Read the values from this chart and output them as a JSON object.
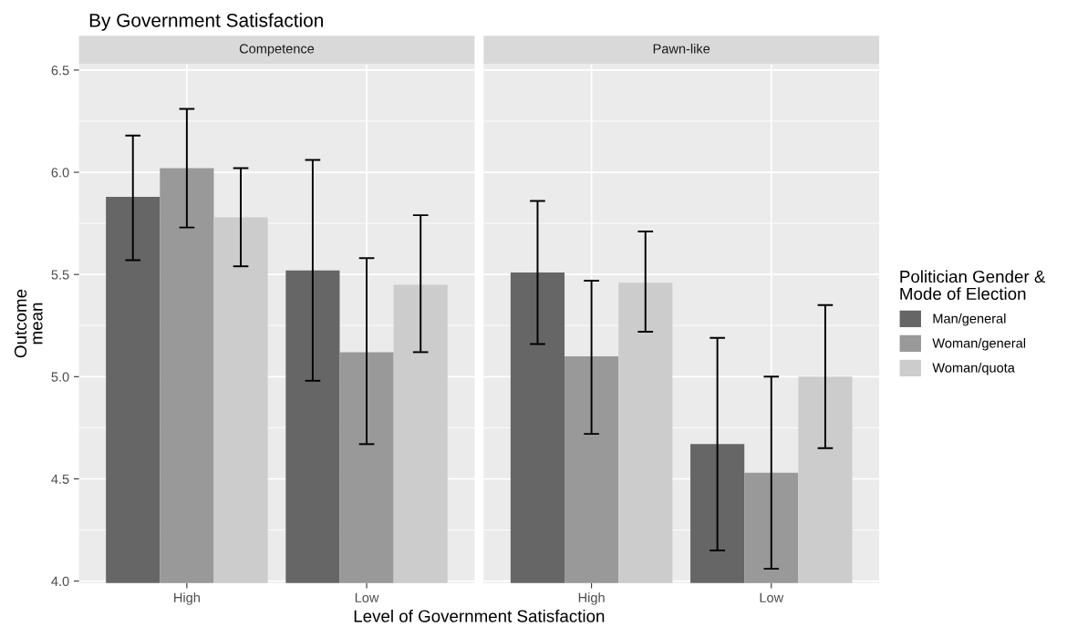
{
  "chart_data": [
    {
      "type": "bar",
      "title": "By Government Satisfaction",
      "subtitle": "Competence",
      "xlabel": "Level of Government Satisfaction",
      "ylabel": "Outcome\nmean",
      "categories": [
        "High",
        "Low"
      ],
      "ylim": [
        3.99,
        6.53
      ],
      "yticks": [
        {
          "value": 4,
          "label": "4.0"
        },
        4.5,
        {
          "value": 5,
          "label": "5.0"
        },
        5.5,
        {
          "value": 6,
          "label": "6.0"
        },
        6.5
      ],
      "grid": true,
      "series": [
        {
          "color": "#666666",
          "values": [
            5.88,
            5.52
          ],
          "errors": [
            [
              5.57,
              6.18
            ],
            [
              4.98,
              6.06
            ]
          ]
        },
        {
          "color": "#999999",
          "values": [
            6.02,
            5.12
          ],
          "errors": [
            [
              5.73,
              6.31
            ],
            [
              4.67,
              5.58
            ]
          ]
        },
        {
          "color": "#cccccc",
          "values": [
            5.78,
            5.45
          ],
          "errors": [
            [
              5.54,
              6.02
            ],
            [
              5.12,
              5.79
            ]
          ]
        }
      ]
    },
    {
      "type": "bar",
      "subtitle": "Pawn-like",
      "legend_title": "Politician Gender &\nMode of Election",
      "categories": [
        "High",
        "Low"
      ],
      "ylim": [
        3.99,
        6.53
      ],
      "tick_labels": "x",
      "grid": true,
      "legend": "right",
      "series": [
        {
          "name": "Man/general",
          "color": "#666666",
          "values": [
            5.51,
            4.67
          ],
          "errors": [
            [
              5.16,
              5.86
            ],
            [
              4.15,
              5.19
            ]
          ]
        },
        {
          "name": "Woman/general",
          "color": "#999999",
          "values": [
            5.1,
            4.53
          ],
          "errors": [
            [
              4.72,
              5.47
            ],
            [
              4.06,
              5.0
            ]
          ]
        },
        {
          "name": "Woman/quota",
          "color": "#cccccc",
          "values": [
            5.46,
            5.0
          ],
          "errors": [
            [
              5.22,
              5.71
            ],
            [
              4.65,
              5.35
            ]
          ]
        }
      ]
    }
  ]
}
